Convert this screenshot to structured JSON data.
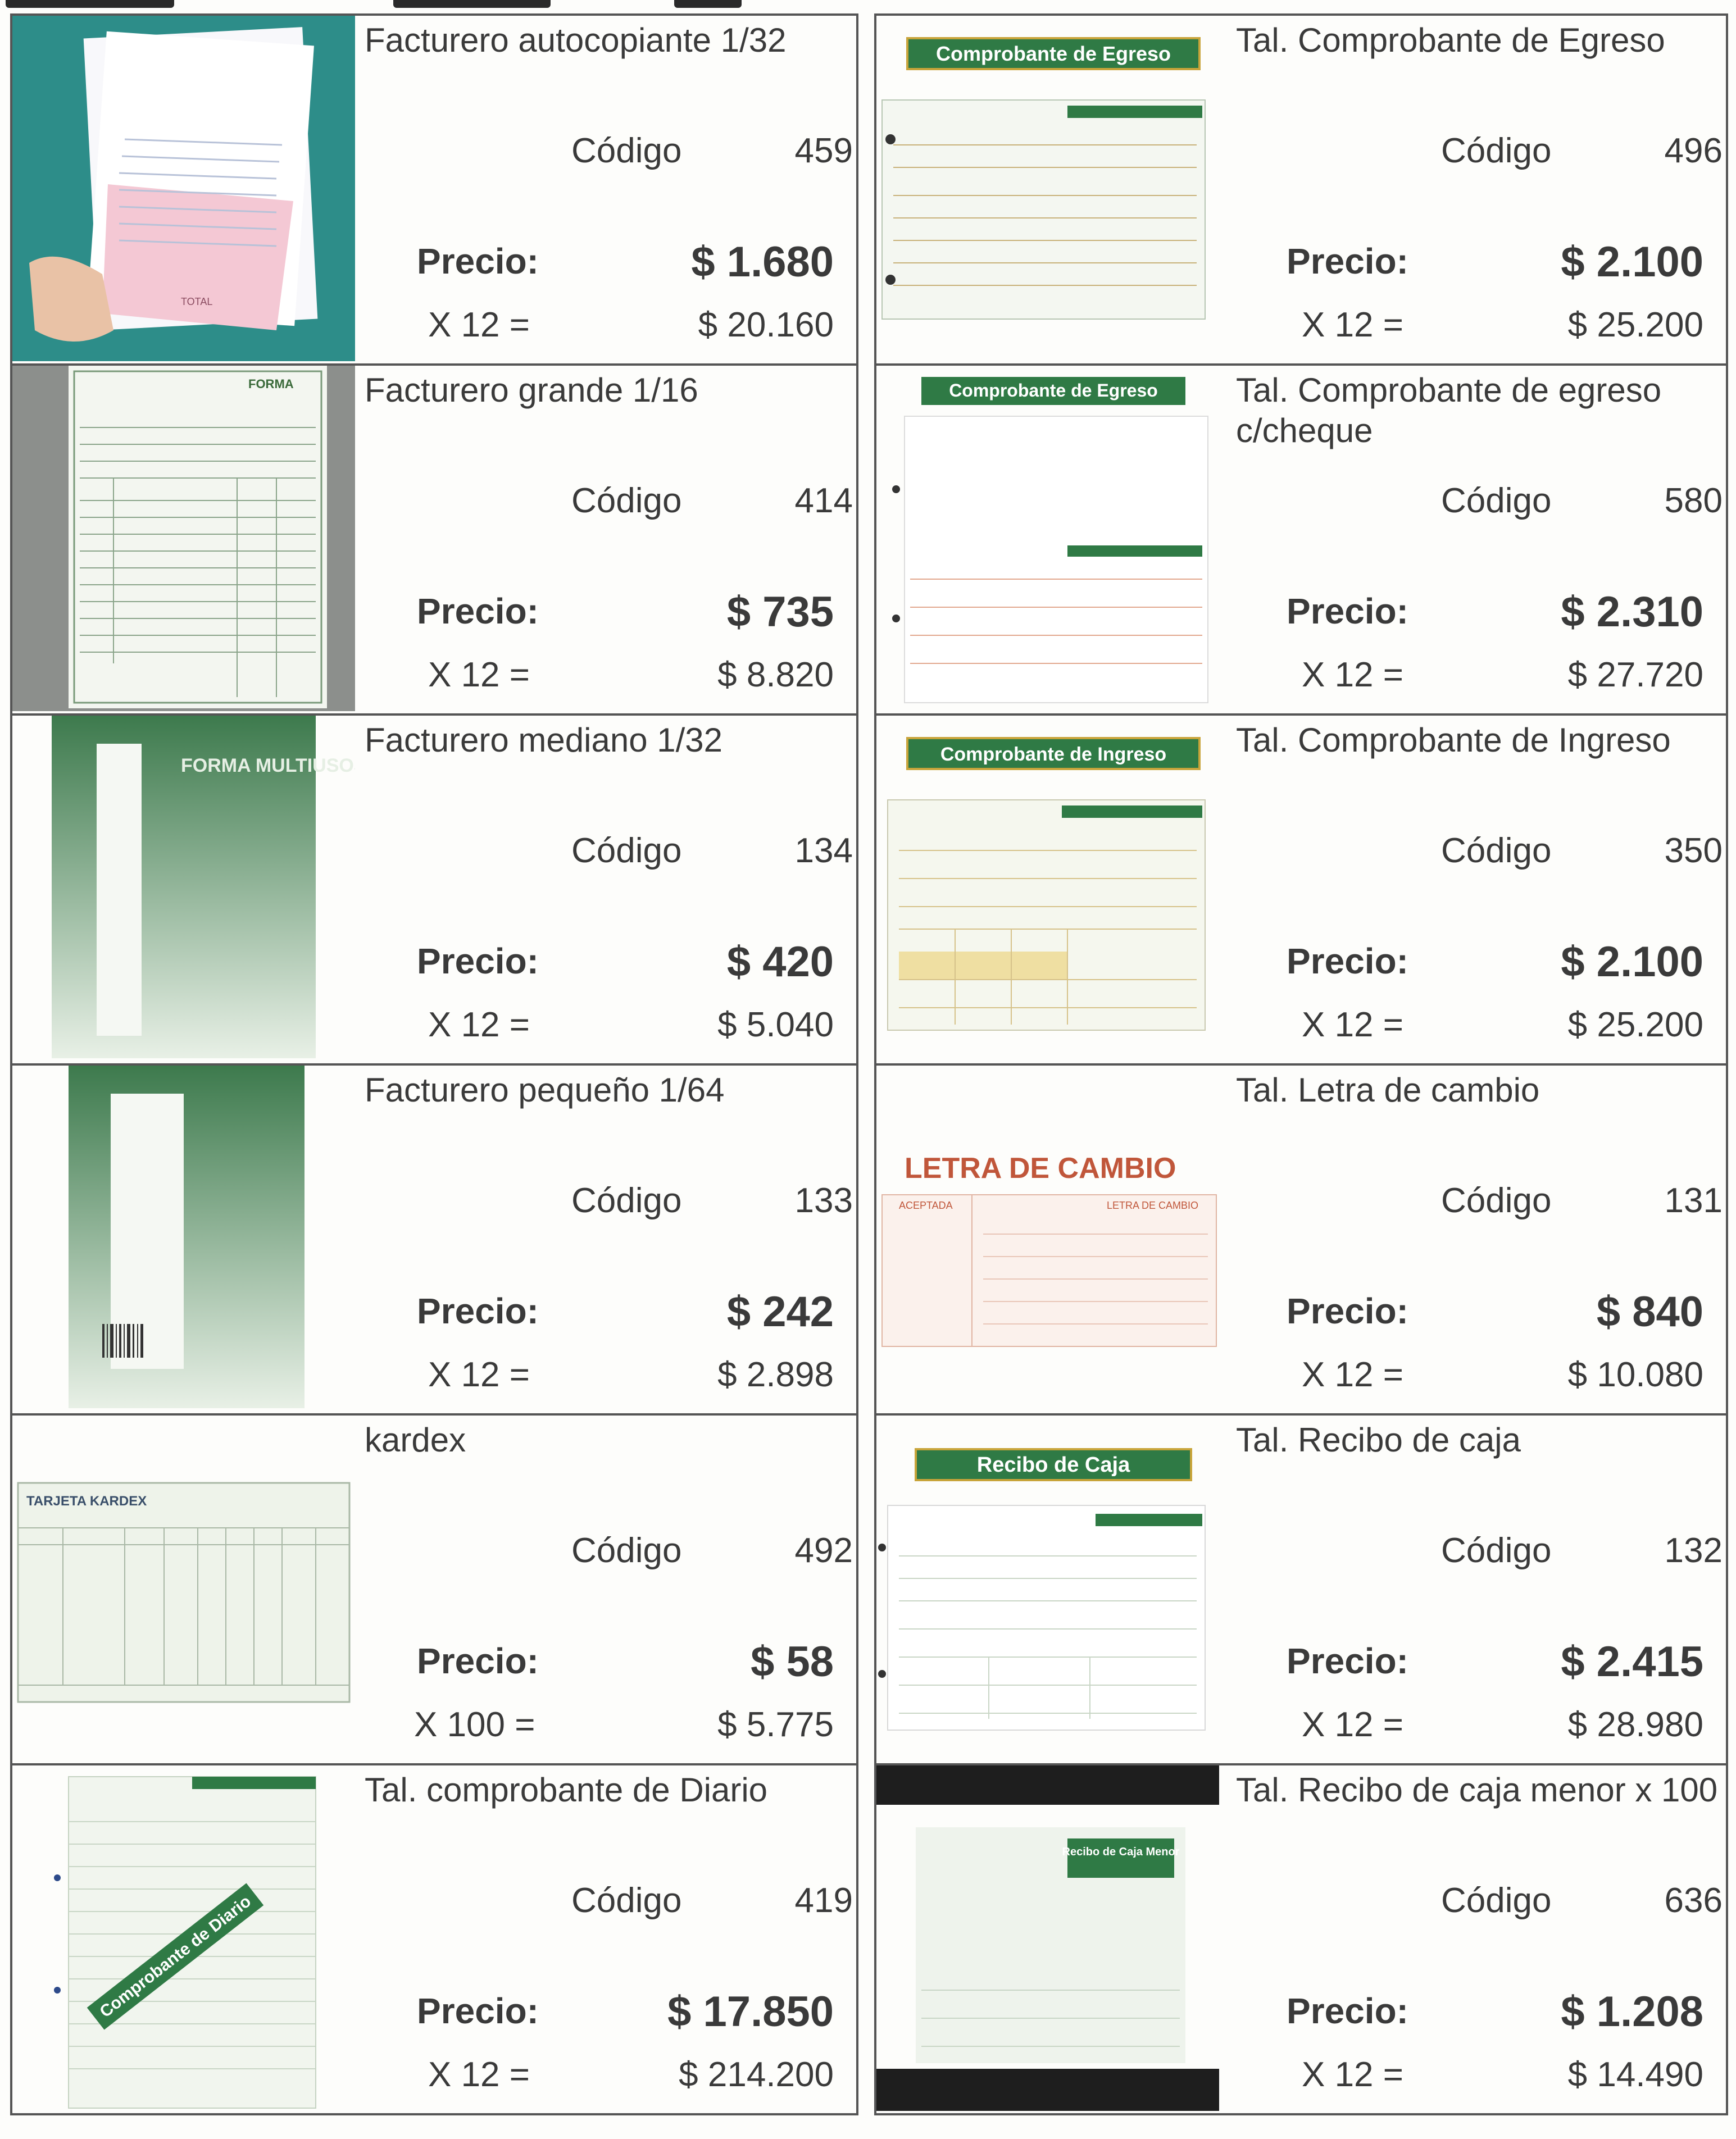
{
  "items_left": [
    {
      "title": "Facturero autocopiante 1/32",
      "codigo_label": "Código",
      "codigo": "459",
      "precio_label": "Precio:",
      "precio": "$ 1.680",
      "mult_label": "X 12 =",
      "mult_total": "$ 20.160"
    },
    {
      "title": "Facturero grande 1/16",
      "codigo_label": "Código",
      "codigo": "414",
      "precio_label": "Precio:",
      "precio": "$ 735",
      "mult_label": "X 12 =",
      "mult_total": "$ 8.820"
    },
    {
      "title": "Facturero mediano 1/32",
      "codigo_label": "Código",
      "codigo": "134",
      "precio_label": "Precio:",
      "precio": "$ 420",
      "mult_label": "X 12 =",
      "mult_total": "$ 5.040"
    },
    {
      "title": "Facturero pequeño 1/64",
      "codigo_label": "Código",
      "codigo": "133",
      "precio_label": "Precio:",
      "precio": "$ 242",
      "mult_label": "X 12 =",
      "mult_total": "$ 2.898"
    },
    {
      "title": "kardex",
      "codigo_label": "Código",
      "codigo": "492",
      "precio_label": "Precio:",
      "precio": "$ 58",
      "mult_label": "X 100 =",
      "mult_total": "$ 5.775"
    },
    {
      "title": "Tal. comprobante de Diario",
      "codigo_label": "Código",
      "codigo": "419",
      "precio_label": "Precio:",
      "precio": "$ 17.850",
      "mult_label": "X 12 =",
      "mult_total": "$ 214.200"
    }
  ],
  "items_right": [
    {
      "title": "Tal. Comprobante de Egreso",
      "codigo_label": "Código",
      "codigo": "496",
      "precio_label": "Precio:",
      "precio": "$ 2.100",
      "mult_label": "X 12 =",
      "mult_total": "$ 25.200"
    },
    {
      "title": "Tal. Comprobante de egreso c/cheque",
      "codigo_label": "Código",
      "codigo": "580",
      "precio_label": "Precio:",
      "precio": "$ 2.310",
      "mult_label": "X 12 =",
      "mult_total": "$ 27.720"
    },
    {
      "title": "Tal. Comprobante de Ingreso",
      "codigo_label": "Código",
      "codigo": "350",
      "precio_label": "Precio:",
      "precio": "$ 2.100",
      "mult_label": "X 12 =",
      "mult_total": "$ 25.200"
    },
    {
      "title": "Tal. Letra de cambio",
      "codigo_label": "Código",
      "codigo": "131",
      "precio_label": "Precio:",
      "precio": "$ 840",
      "mult_label": "X 12 =",
      "mult_total": "$ 10.080"
    },
    {
      "title": "Tal. Recibo de caja",
      "codigo_label": "Código",
      "codigo": "132",
      "precio_label": "Precio:",
      "precio": "$ 2.415",
      "mult_label": "X 12 =",
      "mult_total": "$ 28.980"
    },
    {
      "title": "Tal. Recibo de caja menor x 100",
      "codigo_label": "Código",
      "codigo": "636",
      "precio_label": "Precio:",
      "precio": "$ 1.208",
      "mult_label": "X 12 =",
      "mult_total": "$ 14.490"
    }
  ],
  "thumbnails": {
    "egreso_banner": "Comprobante de Egreso",
    "egreso_cheque_banner": "Comprobante de Egreso",
    "ingreso_banner": "Comprobante de Ingreso",
    "letra_banner": "LETRA DE CAMBIO",
    "letra_sub": "LETRA DE CAMBIO",
    "letra_aceptada": "ACEPTADA",
    "recibo_banner": "Recibo de Caja",
    "recibo_menor_banner": "Recibo de Caja Menor",
    "diario_banner": "Comprobante de Diario",
    "kardex_header": "TARJETA KARDEX",
    "forma_multiusos": "FORMA MULTIUSOS",
    "forma": "FORMA",
    "total": "TOTAL"
  },
  "colors": {
    "green": "#2f7a45",
    "teal": "#2a8a87",
    "letra_red": "#c0563a"
  }
}
